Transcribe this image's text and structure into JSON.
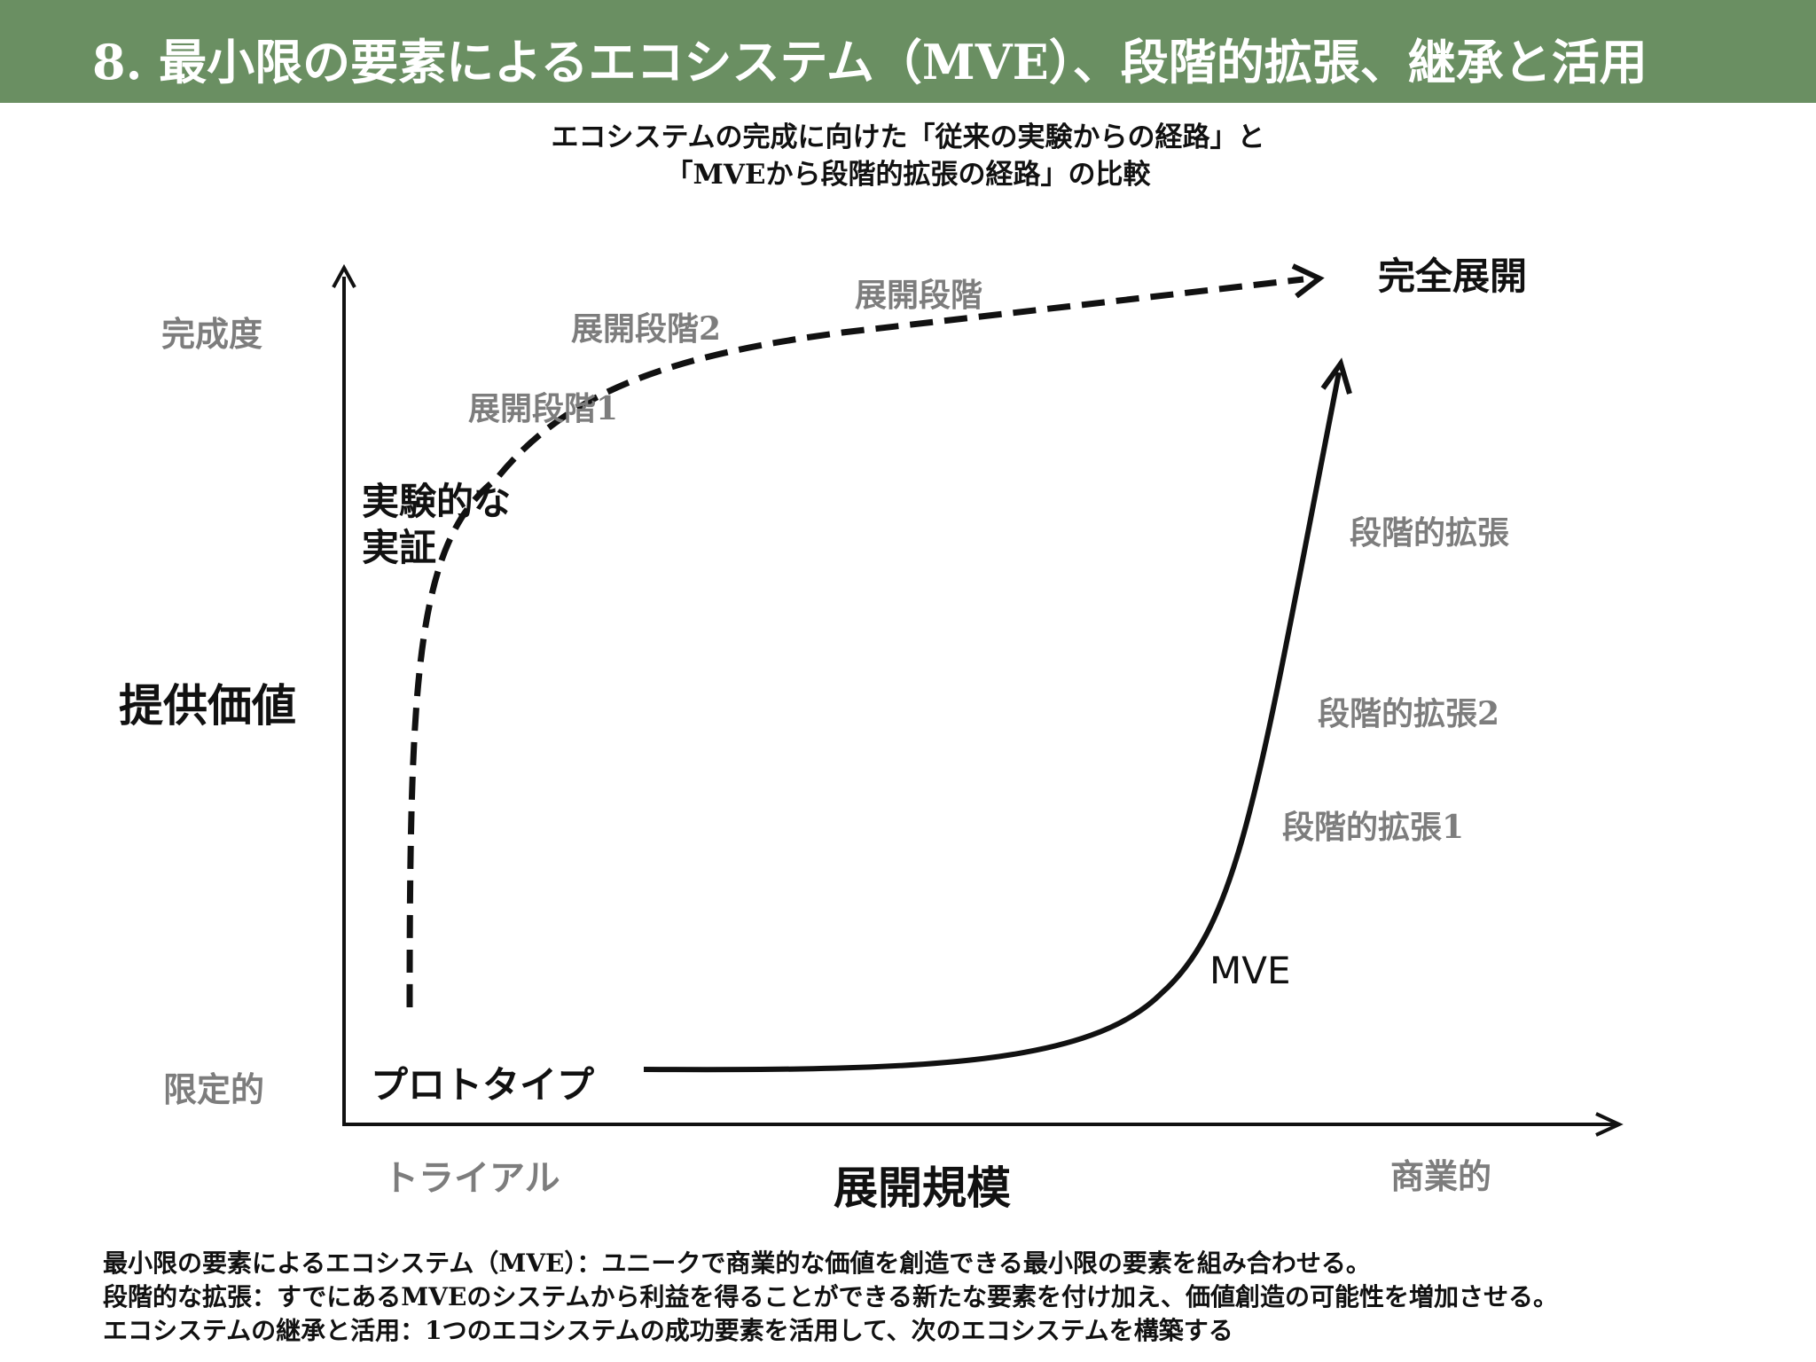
{
  "header": {
    "title": "8. 最小限の要素によるエコシステム（MVE）、段階的拡張、継承と活用",
    "bg_color": "#6a8f62"
  },
  "subtitle": {
    "line1": "エコシステムの完成に向けた「従来の実験からの経路」と",
    "line2": "「MVEから段階的拡張の経路」の比較"
  },
  "y_axis": {
    "title": "提供価値",
    "top_label": "完成度",
    "bottom_label": "限定的"
  },
  "x_axis": {
    "title": "展開規模",
    "left_label": "トライアル",
    "right_label": "商業的"
  },
  "traditional_path": {
    "start_label_line1": "実験的な",
    "start_label_line2": "実証",
    "stage1": "展開段階1",
    "stage2": "展開段階2",
    "stage3": "展開段階",
    "style": "dashed"
  },
  "mve_path": {
    "start_label": "プロトタイプ",
    "mve_label": "MVE",
    "stage1": "段階的拡張1",
    "stage2": "段階的拡張2",
    "stage3": "段階的拡張",
    "style": "solid"
  },
  "goal_label": "完全展開",
  "footer": {
    "line1": "最小限の要素によるエコシステム（MVE）：ユニークで商業的な価値を創造できる最小限の要素を組み合わせる。",
    "line2": "段階的な拡張：すでにあるMVEのシステムから利益を得ることができる新たな要素を付け加え、価値創造の可能性を増加させる。",
    "line3": "エコシステムの継承と活用：1つのエコシステムの成功要素を活用して、次のエコシステムを構築する"
  }
}
